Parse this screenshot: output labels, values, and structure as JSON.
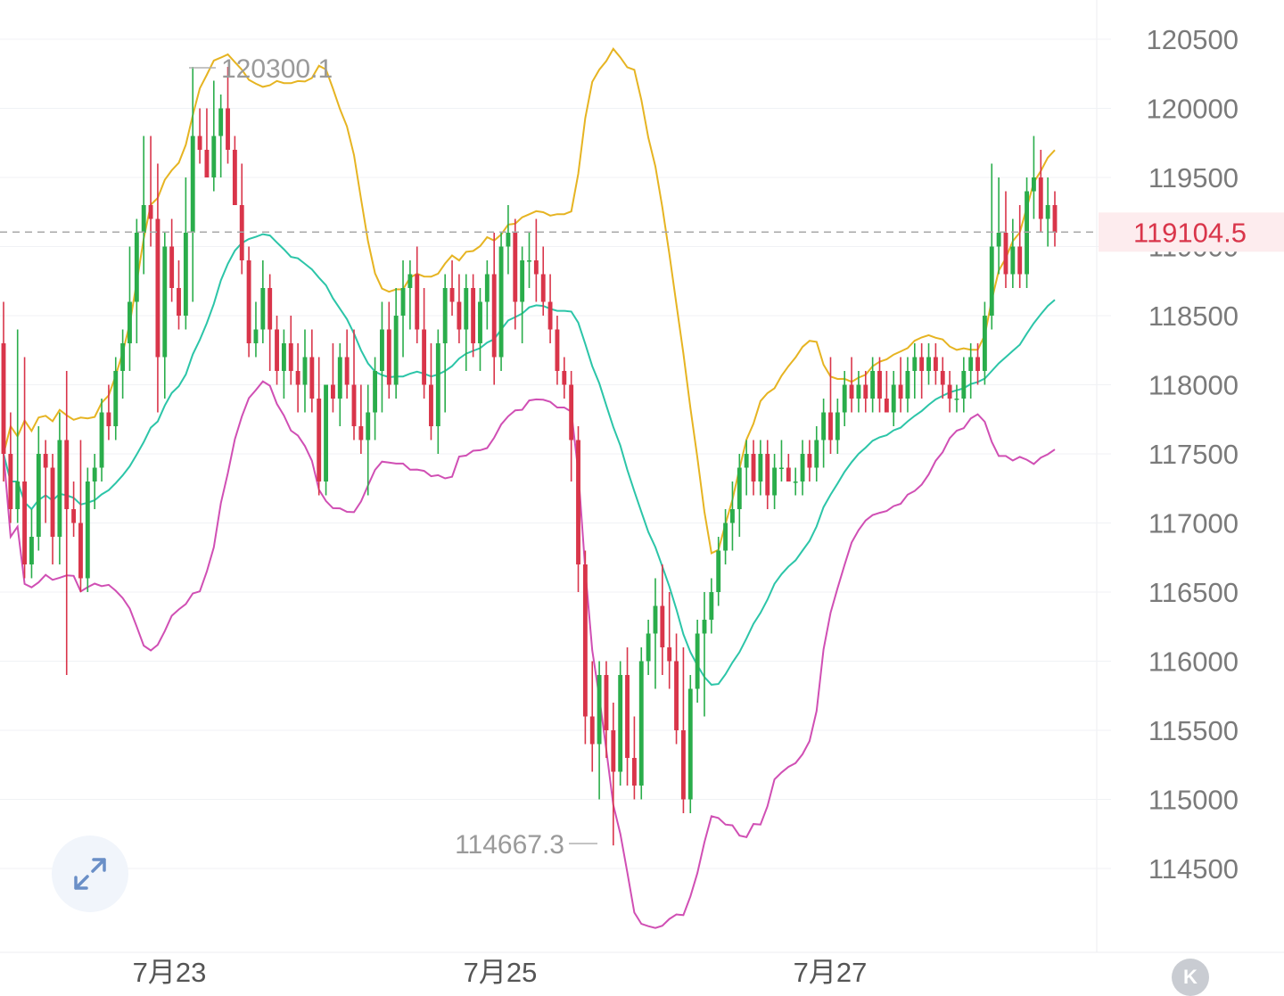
{
  "chart_data": {
    "type": "candlestick",
    "y_ticks": [
      "120500",
      "120000",
      "119500",
      "119000",
      "118500",
      "118000",
      "117500",
      "117000",
      "116500",
      "116000",
      "115500",
      "115000",
      "114500"
    ],
    "x_ticks": [
      "7月23",
      "7月25",
      "7月27"
    ],
    "ylim": [
      114200,
      120750
    ],
    "current_price": "119104.5",
    "max_label": "120300.1",
    "min_label": "114667.3",
    "grid": true,
    "colors": {
      "up": "#2aad4b",
      "down": "#d9354a",
      "upper_band": "#e6b422",
      "middle_band": "#2cc5a8",
      "lower_band": "#d04fb4"
    },
    "candles": [
      [
        118300,
        118600,
        117300,
        117500
      ],
      [
        117500,
        117800,
        117000,
        117100
      ],
      [
        117100,
        118400,
        117000,
        117300
      ],
      [
        117300,
        118200,
        116600,
        116700
      ],
      [
        116700,
        117100,
        116600,
        116900
      ],
      [
        116900,
        117700,
        116800,
        117500
      ],
      [
        117500,
        117600,
        117000,
        117400
      ],
      [
        117400,
        117500,
        116700,
        116900
      ],
      [
        116900,
        117800,
        116700,
        117600
      ],
      [
        117600,
        118100,
        115900,
        117100
      ],
      [
        117100,
        117300,
        116900,
        117000
      ],
      [
        117000,
        117600,
        116500,
        116600
      ],
      [
        116600,
        117400,
        116500,
        117300
      ],
      [
        117300,
        117500,
        117100,
        117400
      ],
      [
        117400,
        117900,
        117300,
        117800
      ],
      [
        117800,
        118000,
        117600,
        117700
      ],
      [
        117700,
        118200,
        117600,
        118100
      ],
      [
        118100,
        118400,
        117900,
        118300
      ],
      [
        118300,
        119000,
        118100,
        118600
      ],
      [
        118600,
        119200,
        118300,
        119100
      ],
      [
        119100,
        119800,
        118800,
        119300
      ],
      [
        119300,
        119800,
        119000,
        119200
      ],
      [
        119200,
        119600,
        117800,
        118200
      ],
      [
        118200,
        119100,
        117900,
        119000
      ],
      [
        119000,
        119200,
        118600,
        118700
      ],
      [
        118700,
        118900,
        118400,
        118500
      ],
      [
        118500,
        119500,
        118400,
        119100
      ],
      [
        119100,
        120300,
        118600,
        119800
      ],
      [
        119800,
        120000,
        119600,
        119700
      ],
      [
        119700,
        120000,
        119500,
        119500
      ],
      [
        119500,
        120200,
        119400,
        119800
      ],
      [
        119800,
        120100,
        119500,
        120000
      ],
      [
        120000,
        120300,
        119600,
        119700
      ],
      [
        119700,
        119800,
        119300,
        119300
      ],
      [
        119300,
        119600,
        118800,
        118900
      ],
      [
        118900,
        119000,
        118200,
        118300
      ],
      [
        118300,
        118600,
        118200,
        118400
      ],
      [
        118400,
        118900,
        118300,
        118700
      ],
      [
        118700,
        118800,
        118100,
        118400
      ],
      [
        118400,
        118500,
        118000,
        118100
      ],
      [
        118100,
        118400,
        117900,
        118300
      ],
      [
        118300,
        118500,
        118000,
        118100
      ],
      [
        118100,
        118300,
        117800,
        118000
      ],
      [
        118000,
        118400,
        117800,
        118200
      ],
      [
        118200,
        118400,
        117800,
        117900
      ],
      [
        117900,
        118200,
        117200,
        117300
      ],
      [
        117300,
        118000,
        117200,
        118000
      ],
      [
        118000,
        118300,
        117800,
        117900
      ],
      [
        117900,
        118300,
        117700,
        118200
      ],
      [
        118200,
        118400,
        117900,
        118000
      ],
      [
        118000,
        118400,
        117600,
        117700
      ],
      [
        117700,
        118000,
        117500,
        117600
      ],
      [
        117600,
        118000,
        117200,
        117800
      ],
      [
        117800,
        118200,
        117600,
        118100
      ],
      [
        118100,
        118600,
        117800,
        118400
      ],
      [
        118400,
        118600,
        117900,
        118000
      ],
      [
        118000,
        118700,
        117900,
        118500
      ],
      [
        118500,
        118900,
        118200,
        118700
      ],
      [
        118700,
        118900,
        118400,
        118800
      ],
      [
        118800,
        119000,
        118300,
        118400
      ],
      [
        118400,
        118700,
        117900,
        118000
      ],
      [
        118000,
        118300,
        117600,
        117700
      ],
      [
        117700,
        118400,
        117500,
        118300
      ],
      [
        118300,
        118800,
        117800,
        118700
      ],
      [
        118700,
        118900,
        118500,
        118600
      ],
      [
        118600,
        118800,
        118300,
        118400
      ],
      [
        118400,
        118800,
        118100,
        118700
      ],
      [
        118700,
        118800,
        118200,
        118300
      ],
      [
        118300,
        118700,
        118100,
        118600
      ],
      [
        118600,
        118900,
        118400,
        118800
      ],
      [
        118800,
        119100,
        118000,
        118200
      ],
      [
        118200,
        119100,
        118100,
        119000
      ],
      [
        119000,
        119300,
        118800,
        119100
      ],
      [
        119100,
        119200,
        118400,
        118600
      ],
      [
        118600,
        119000,
        118300,
        118900
      ],
      [
        118900,
        119100,
        118700,
        118900
      ],
      [
        118900,
        119200,
        118600,
        118800
      ],
      [
        118800,
        119000,
        118500,
        118600
      ],
      [
        118600,
        118800,
        118300,
        118400
      ],
      [
        118400,
        118500,
        118000,
        118100
      ],
      [
        118100,
        118200,
        117900,
        118000
      ],
      [
        118000,
        118100,
        117300,
        117600
      ],
      [
        117600,
        117700,
        116500,
        116700
      ],
      [
        116700,
        116800,
        115400,
        115600
      ],
      [
        115600,
        116000,
        115200,
        115400
      ],
      [
        115400,
        116000,
        115000,
        115900
      ],
      [
        115900,
        116000,
        115300,
        115500
      ],
      [
        115500,
        115700,
        114667,
        115200
      ],
      [
        115200,
        116000,
        115100,
        115900
      ],
      [
        115900,
        116100,
        115100,
        115300
      ],
      [
        115300,
        115600,
        115000,
        115100
      ],
      [
        115100,
        116100,
        115000,
        116000
      ],
      [
        116000,
        116300,
        115900,
        116200
      ],
      [
        116200,
        116600,
        115800,
        116400
      ],
      [
        116400,
        116700,
        115900,
        116100
      ],
      [
        116100,
        116500,
        115800,
        116000
      ],
      [
        116000,
        116200,
        115400,
        115500
      ],
      [
        115500,
        116100,
        114900,
        115000
      ],
      [
        115000,
        115900,
        114900,
        115800
      ],
      [
        115800,
        116300,
        115700,
        116200
      ],
      [
        116200,
        116500,
        115600,
        116300
      ],
      [
        116300,
        116600,
        116200,
        116500
      ],
      [
        116500,
        116900,
        116400,
        116800
      ],
      [
        116800,
        117100,
        116700,
        117000
      ],
      [
        117000,
        117300,
        116800,
        117100
      ],
      [
        117100,
        117500,
        116900,
        117400
      ],
      [
        117400,
        117600,
        117200,
        117500
      ],
      [
        117500,
        117600,
        117200,
        117300
      ],
      [
        117300,
        117600,
        117200,
        117500
      ],
      [
        117500,
        117600,
        117100,
        117200
      ],
      [
        117200,
        117500,
        117100,
        117400
      ],
      [
        117400,
        117600,
        117300,
        117400
      ],
      [
        117400,
        117500,
        117300,
        117300
      ],
      [
        117300,
        117400,
        117200,
        117300
      ],
      [
        117300,
        117600,
        117200,
        117500
      ],
      [
        117500,
        117600,
        117300,
        117400
      ],
      [
        117400,
        117700,
        117300,
        117600
      ],
      [
        117600,
        117900,
        117400,
        117800
      ],
      [
        117800,
        118200,
        117500,
        117600
      ],
      [
        117600,
        117900,
        117500,
        117800
      ],
      [
        117800,
        118100,
        117700,
        118000
      ],
      [
        118000,
        118200,
        117800,
        117900
      ],
      [
        117900,
        118100,
        117800,
        118000
      ],
      [
        118000,
        118100,
        117800,
        117900
      ],
      [
        117900,
        118200,
        117800,
        118100
      ],
      [
        118100,
        118200,
        117800,
        117900
      ],
      [
        117900,
        118100,
        117800,
        117800
      ],
      [
        117800,
        118100,
        117700,
        118000
      ],
      [
        118000,
        118200,
        117800,
        117900
      ],
      [
        117900,
        118200,
        117800,
        118100
      ],
      [
        118100,
        118300,
        117900,
        118200
      ],
      [
        118200,
        118300,
        117900,
        118100
      ],
      [
        118100,
        118300,
        118000,
        118200
      ],
      [
        118200,
        118300,
        118000,
        118100
      ],
      [
        118100,
        118200,
        117900,
        118000
      ],
      [
        118000,
        118100,
        117800,
        117900
      ],
      [
        117900,
        118000,
        117800,
        117900
      ],
      [
        117900,
        118200,
        117800,
        118100
      ],
      [
        118100,
        118300,
        117900,
        118200
      ],
      [
        118200,
        118300,
        118000,
        118100
      ],
      [
        118100,
        118600,
        118000,
        118500
      ],
      [
        118500,
        119600,
        118400,
        119000
      ],
      [
        119000,
        119500,
        118800,
        119100
      ],
      [
        119100,
        119400,
        118700,
        118800
      ],
      [
        118800,
        119200,
        118700,
        119000
      ],
      [
        119000,
        119300,
        118700,
        118800
      ],
      [
        118800,
        119500,
        118700,
        119400
      ],
      [
        119400,
        119800,
        119200,
        119500
      ],
      [
        119500,
        119700,
        119100,
        119200
      ],
      [
        119200,
        119500,
        119000,
        119300
      ],
      [
        119300,
        119400,
        119000,
        119100
      ]
    ]
  },
  "labels": {
    "expand_icon": "expand-icon",
    "k_button": "K"
  }
}
